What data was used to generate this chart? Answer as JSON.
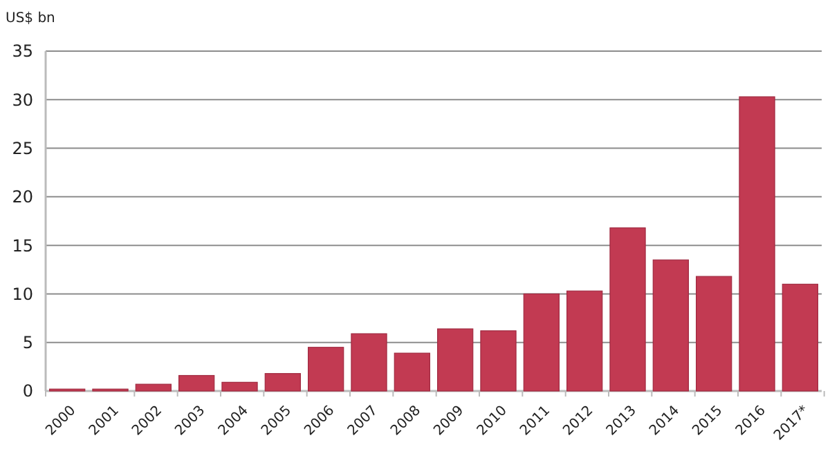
{
  "chart_data": {
    "type": "bar",
    "ylabel": "US$ bn",
    "categories": [
      "2000",
      "2001",
      "2002",
      "2003",
      "2004",
      "2005",
      "2006",
      "2007",
      "2008",
      "2009",
      "2010",
      "2011",
      "2012",
      "2013",
      "2014",
      "2015",
      "2016",
      "2017*"
    ],
    "values": [
      0.2,
      0.2,
      0.7,
      1.6,
      0.9,
      1.8,
      4.5,
      5.9,
      3.9,
      6.4,
      6.2,
      10.0,
      10.3,
      16.8,
      13.5,
      11.8,
      30.3,
      11.0
    ],
    "color": "#c23a52",
    "ylim": [
      0,
      35
    ],
    "yticks": [
      0,
      5,
      10,
      15,
      20,
      25,
      30,
      35
    ],
    "grid": "y"
  }
}
